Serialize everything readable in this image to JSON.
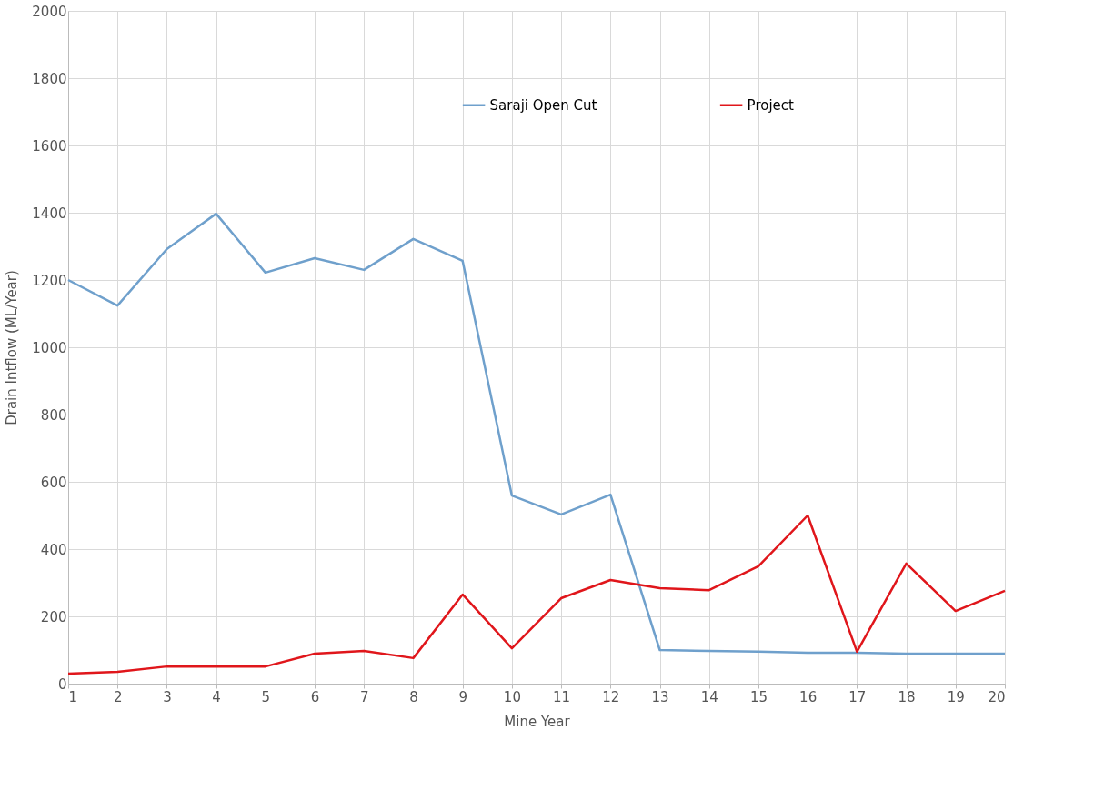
{
  "chart_data": {
    "type": "line",
    "xlabel": "Mine Year",
    "ylabel": "Drain Intflow (ML/Year)",
    "x": [
      1,
      2,
      3,
      4,
      5,
      6,
      7,
      8,
      9,
      10,
      11,
      12,
      13,
      14,
      15,
      16,
      17,
      18,
      19,
      20
    ],
    "xlim": [
      1,
      20
    ],
    "xticks": [
      1,
      2,
      3,
      4,
      5,
      6,
      7,
      8,
      9,
      10,
      11,
      12,
      13,
      14,
      15,
      16,
      17,
      18,
      19,
      20
    ],
    "ylim": [
      0,
      2000
    ],
    "yticks": [
      0,
      200,
      400,
      600,
      800,
      1000,
      1200,
      1400,
      1600,
      1800,
      2000
    ],
    "grid": true,
    "legend": "top",
    "marker": "none",
    "line_style": "solid",
    "series": [
      {
        "name": "Saraji Open Cut",
        "color": "#6fa0cc",
        "values": [
          1200,
          1124,
          1292,
          1397,
          1222,
          1265,
          1230,
          1322,
          1257,
          559,
          503,
          562,
          100,
          97,
          95,
          92,
          92,
          89,
          89,
          89
        ]
      },
      {
        "name": "Project",
        "color": "#e0161b",
        "values": [
          30,
          35,
          51,
          51,
          51,
          89,
          97,
          76,
          265,
          105,
          254,
          308,
          284,
          278,
          349,
          500,
          95,
          357,
          216,
          276
        ]
      }
    ]
  }
}
